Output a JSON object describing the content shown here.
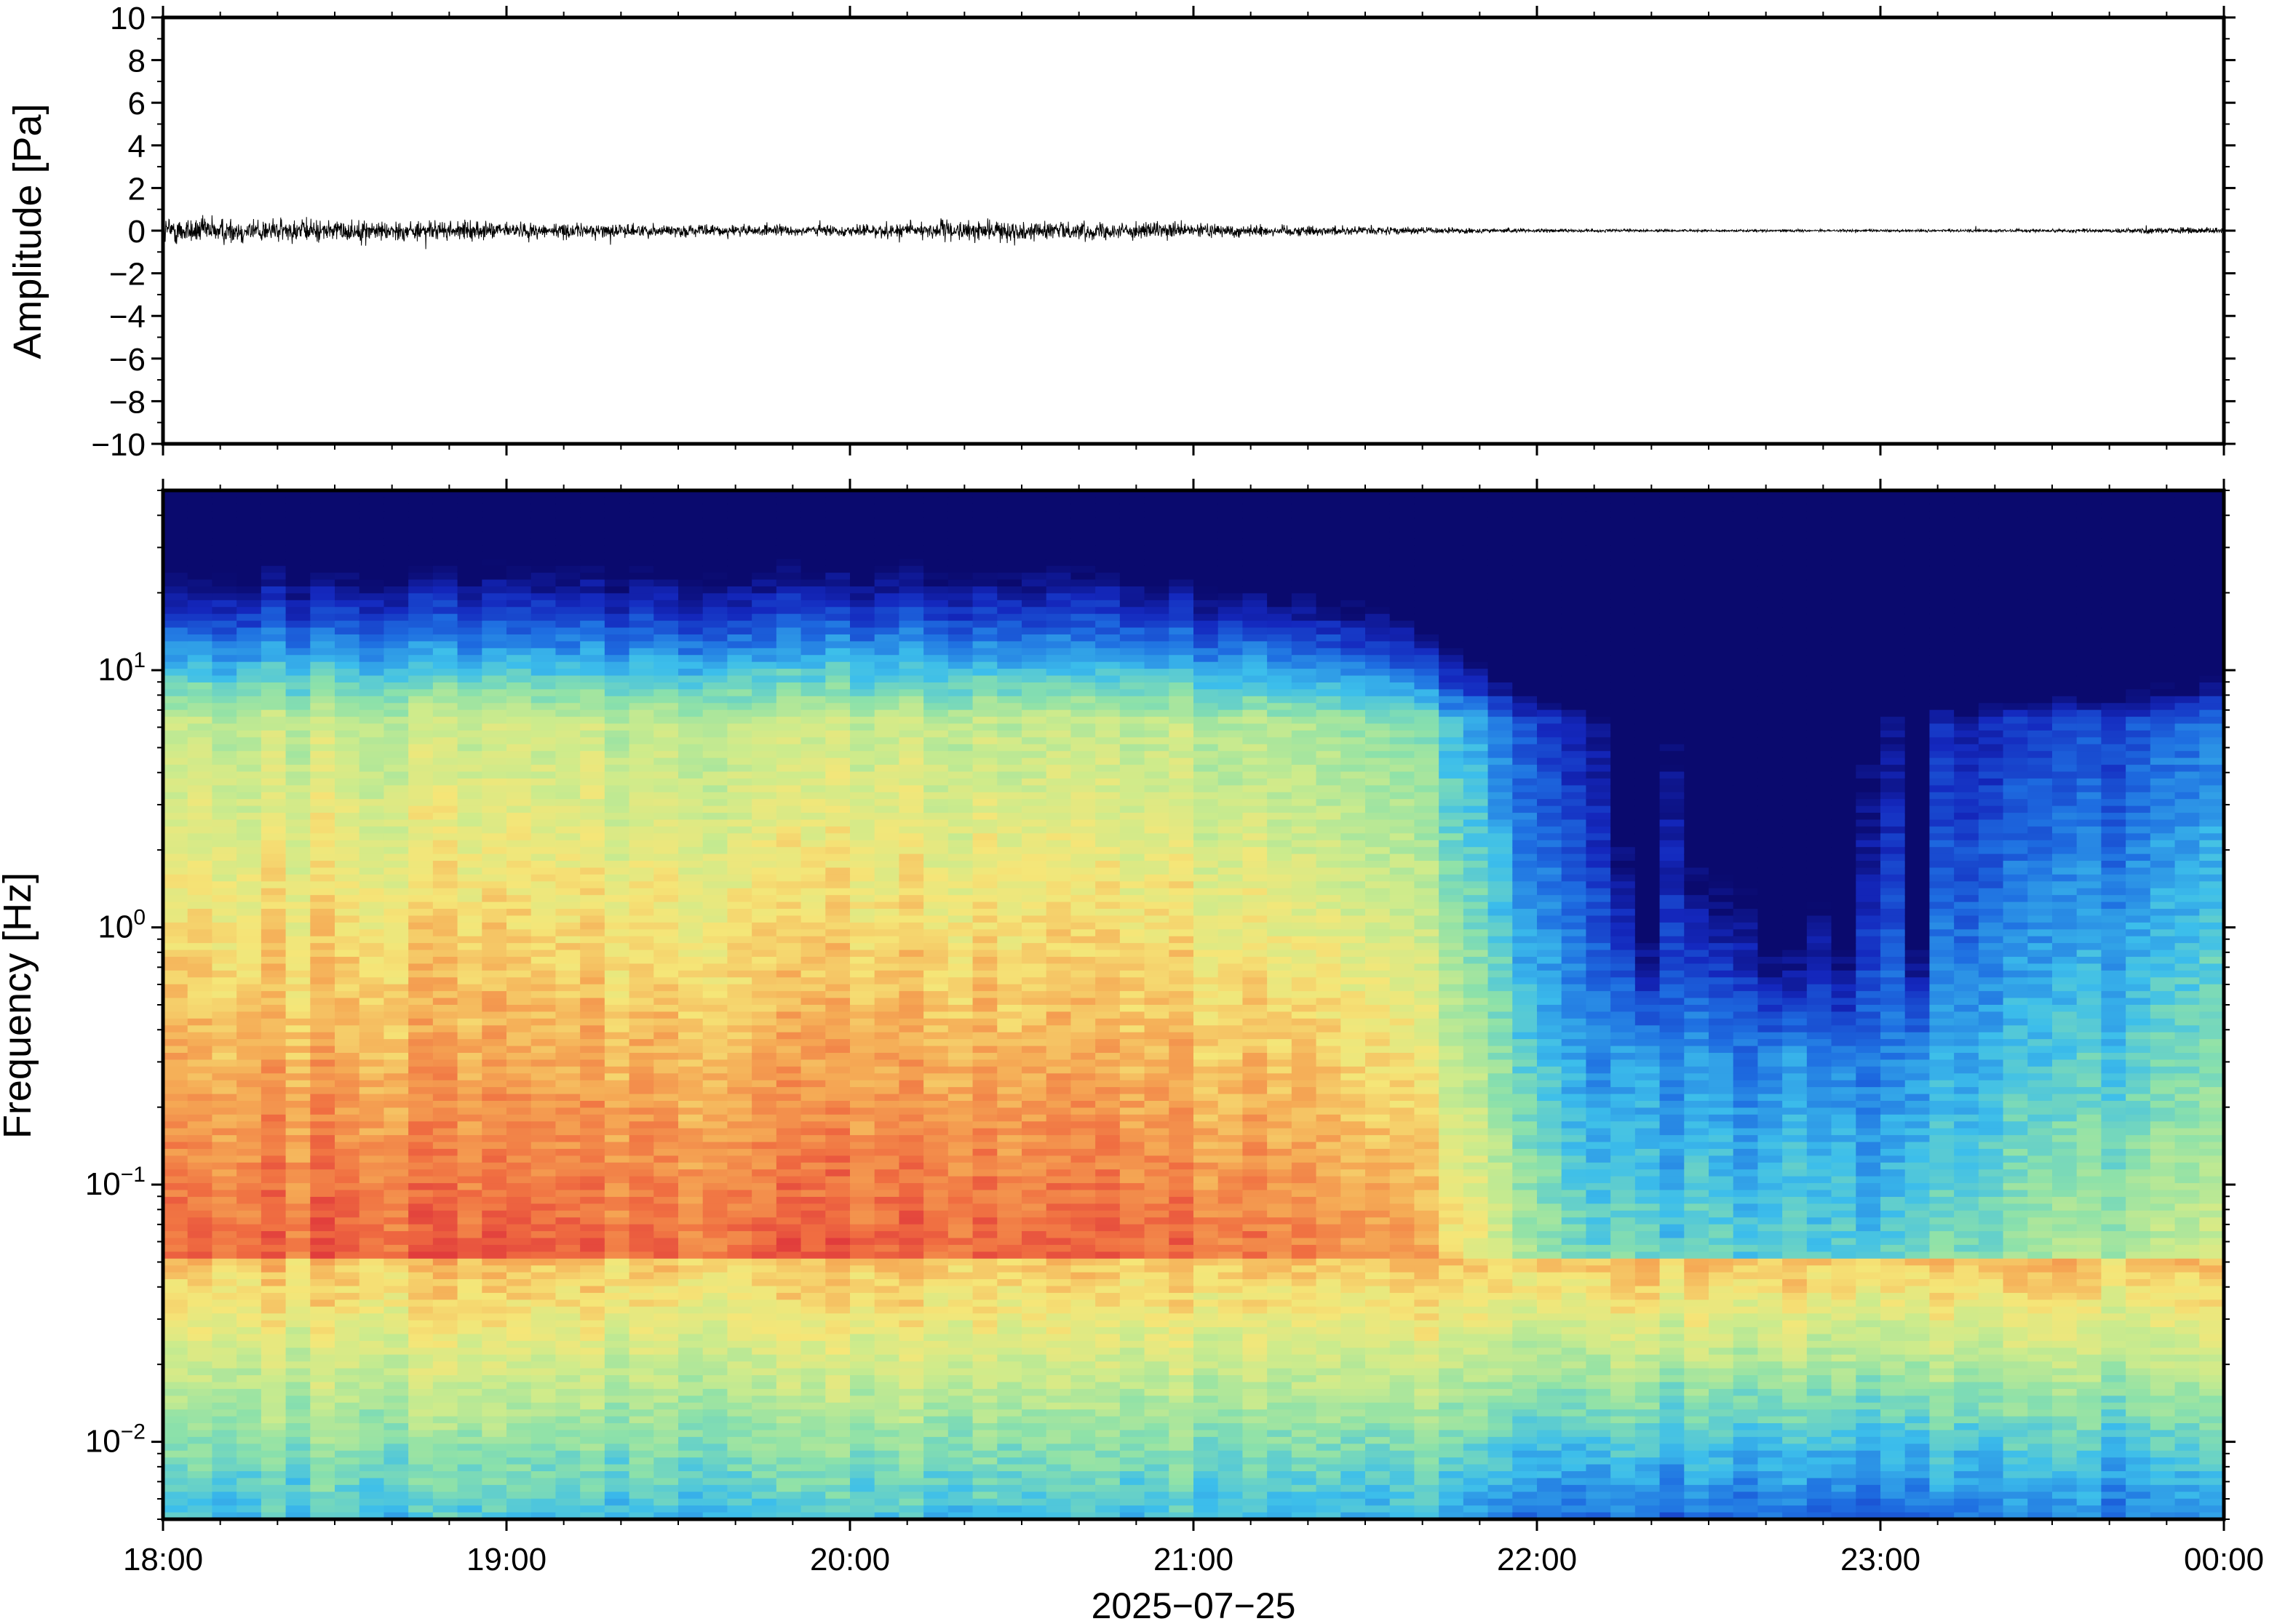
{
  "chart_data": [
    {
      "type": "line",
      "ylabel": "Amplitude [Pa]",
      "ylim": [
        -10,
        10
      ],
      "yticks": [
        10,
        8,
        6,
        4,
        2,
        0,
        -2,
        -4,
        -6,
        -8,
        -10
      ],
      "ytick_labels": [
        "10",
        "8",
        "6",
        "4",
        "2",
        "0",
        "−2",
        "−4",
        "−6",
        "−8",
        "−10"
      ],
      "xlim": [
        "18:00",
        "00:00"
      ],
      "grid": false,
      "series": [
        {
          "values_note_free": true,
          "x_hours": [
            18.0,
            18.5,
            19.0,
            19.5,
            20.0,
            20.2,
            20.5,
            21.0,
            21.5,
            22.0,
            22.5,
            23.0,
            23.5,
            24.0
          ],
          "envelope": [
            1.2,
            0.9,
            0.7,
            0.5,
            0.45,
            0.8,
            0.8,
            0.6,
            0.35,
            0.15,
            0.1,
            0.1,
            0.15,
            0.3
          ]
        }
      ]
    },
    {
      "type": "heatmap",
      "ylabel": "Frequency [Hz]",
      "yscale": "log",
      "ylim": [
        0.005,
        50
      ],
      "yticks": [
        0.01,
        0.1,
        1,
        10
      ],
      "ytick_labels": [
        {
          "base": "10",
          "exp": "−2"
        },
        {
          "base": "10",
          "exp": "−1"
        },
        {
          "base": "10",
          "exp": "0"
        },
        {
          "base": "10",
          "exp": "1"
        }
      ],
      "xlabel": "2025−07−25",
      "xlim": [
        18,
        24
      ],
      "xticks": [
        18,
        19,
        20,
        21,
        22,
        23,
        24
      ],
      "xtick_labels": [
        "18:00",
        "19:00",
        "20:00",
        "21:00",
        "22:00",
        "23:00",
        "00:00"
      ],
      "colormap": "jet",
      "colors": {
        "dark_blue": "#0a0a78",
        "blue": "#1e64dc",
        "cyan": "#46d2e6",
        "green": "#aae68c",
        "yellow": "#f0e678",
        "orange": "#f5a050",
        "red": "#e6463c"
      }
    }
  ]
}
